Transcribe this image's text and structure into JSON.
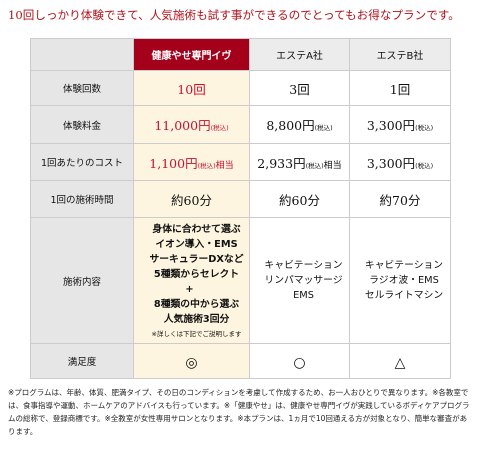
{
  "heading": "10回しっかり体験できて、人気施術も試す事ができるのでとってもお得なプランです。",
  "table": {
    "columns": [
      "健康やせ専門イヴ",
      "エステA社",
      "エステB社"
    ],
    "rows": [
      {
        "label": "体験回数",
        "cells": [
          {
            "main": "10回"
          },
          {
            "main": "3回"
          },
          {
            "main": "1回"
          }
        ]
      },
      {
        "label": "体験料金",
        "cells": [
          {
            "main": "11,000円",
            "tax": "(税込)"
          },
          {
            "main": "8,800円",
            "tax": "(税込)"
          },
          {
            "main": "3,300円",
            "tax": "(税込)"
          }
        ]
      },
      {
        "label": "1回あたりのコスト",
        "cells": [
          {
            "main": "1,100円",
            "tax": "(税込)",
            "suffix": "相当"
          },
          {
            "main": "2,933円",
            "tax": "(税込)",
            "suffix": "相当"
          },
          {
            "main": "3,300円",
            "tax": "(税込)"
          }
        ]
      },
      {
        "label": "1回の施術時間",
        "cells": [
          {
            "main": "約60分"
          },
          {
            "main": "約60分"
          },
          {
            "main": "約70分"
          }
        ]
      },
      {
        "label": "施術内容",
        "cells": [
          {
            "lines": [
              "身体に合わせて選ぶ",
              "イオン導入・EMS",
              "サーキュラーDXなど",
              "5種類からセレクト",
              "+",
              "8種類の中から選ぶ",
              "人気施術3回分"
            ],
            "note": "※詳しくは下記でご説明します"
          },
          {
            "lines": [
              "キャビテーション",
              "リンパマッサージ",
              "EMS"
            ]
          },
          {
            "lines": [
              "キャビテーション",
              "ラジオ波・EMS",
              "セルライトマシン"
            ]
          }
        ]
      },
      {
        "label": "満足度",
        "cells": [
          {
            "main": "◎"
          },
          {
            "main": "○"
          },
          {
            "main": "△"
          }
        ]
      }
    ]
  },
  "footnotes": "※プログラムは、年齢、体質、肥満タイプ、その日のコンディションを考慮して作成するため、お一人おひとりで異なります。※各教室では、食事指導や運動、ホームケアのアドバイスも行っています。※「健康やせ」は、健康やせ専門イヴが実践しているボディケアプログラムの総称で、登録商標です。※全教室が女性専用サロンとなります。※本プランは、1ヵ月で10回通える方が対象となり、簡単な審査があります。",
  "colors": {
    "heading": "#b3131b",
    "accent": "#a5001b",
    "highlight_text": "#c8102e",
    "highlight_bg": "#fdf5df",
    "label_bg": "#e6e6e6",
    "header_bg": "#ececec",
    "border": "#cccccc"
  }
}
